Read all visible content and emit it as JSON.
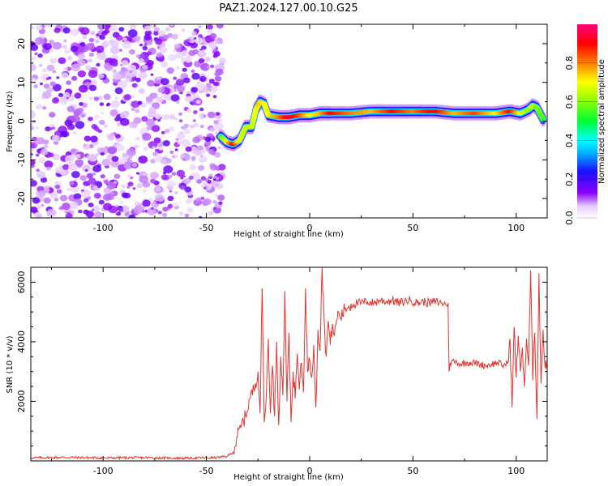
{
  "title": "PAZ1.2024.127.00.10.G25",
  "chart_data": [
    {
      "type": "heatmap",
      "xlabel": "Height of straight line (km)",
      "ylabel": "Frequency (Hz)",
      "xlim": [
        -135,
        115
      ],
      "ylim": [
        -25,
        25
      ],
      "x_ticks": [
        -100,
        -50,
        0,
        50,
        100
      ],
      "x_tick_labels": [
        "-100",
        "-50",
        "0",
        "50",
        "100"
      ],
      "y_ticks": [
        -20,
        -10,
        0,
        10,
        20
      ],
      "y_tick_labels": [
        "-20",
        "-10",
        "0",
        "10",
        "20"
      ],
      "grid": false,
      "colorbar": {
        "label": "Normalized spectral amplitude",
        "range": [
          0,
          1
        ],
        "ticks": [
          0.0,
          0.2,
          0.4,
          0.6,
          0.8
        ],
        "tick_labels": [
          "0.0",
          "0.2",
          "0.4",
          "0.6",
          "0.8"
        ],
        "colormap": "rainbow (white-violet-blue-cyan-green-yellow-red-magenta)"
      },
      "noise_region_x": [
        -135,
        -42
      ],
      "ridge": {
        "x": [
          -43,
          -40,
          -37,
          -34,
          -31,
          -28,
          -26,
          -24,
          -22,
          -20,
          -15,
          -10,
          -5,
          0,
          5,
          10,
          20,
          30,
          40,
          50,
          60,
          70,
          80,
          90,
          97,
          102,
          106,
          108,
          110,
          113
        ],
        "freq_hz": [
          -4,
          -5.5,
          -6,
          -5,
          -1.5,
          -1.5,
          3,
          5,
          4.5,
          1.5,
          1,
          1,
          1.5,
          1.5,
          2,
          2,
          2,
          2.5,
          2.5,
          2.5,
          2.5,
          2,
          2,
          2,
          2.5,
          2,
          3,
          4,
          3.5,
          0.5
        ],
        "amplitude": [
          0.2,
          0.5,
          0.9,
          0.45,
          0.4,
          0.4,
          0.5,
          0.6,
          0.5,
          0.5,
          0.7,
          0.95,
          0.8,
          0.5,
          0.6,
          0.9,
          0.7,
          0.6,
          0.9,
          0.7,
          0.95,
          0.6,
          0.8,
          0.5,
          0.9,
          0.5,
          0.3,
          0.4,
          0.3,
          0.2
        ]
      }
    },
    {
      "type": "line",
      "xlabel": "Height of straight line (km)",
      "ylabel": "SNR (10 * v/v)",
      "xlim": [
        -135,
        115
      ],
      "ylim": [
        0,
        6500
      ],
      "x_ticks": [
        -100,
        -50,
        0,
        50,
        100
      ],
      "x_tick_labels": [
        "-100",
        "-50",
        "0",
        "50",
        "100"
      ],
      "y_ticks": [
        2000,
        4000,
        6000
      ],
      "y_tick_labels": [
        "2000",
        "4000",
        "6000"
      ],
      "grid": false,
      "series": [
        {
          "color": "#e8322e",
          "x": [
            -135,
            -120,
            -100,
            -80,
            -60,
            -45,
            -40,
            -37,
            -35,
            -33,
            -31,
            -29,
            -27,
            -25,
            -24,
            -23,
            -22,
            -21,
            -20,
            -19,
            -18,
            -17,
            -16,
            -15,
            -14,
            -13,
            -12,
            -11,
            -10,
            -9,
            -8,
            -7,
            -6,
            -5,
            -4,
            -3,
            -2,
            -1,
            0,
            1,
            2,
            3,
            4,
            5,
            6,
            7,
            8,
            9,
            10,
            11,
            12,
            13,
            14,
            15,
            17,
            19,
            21,
            23,
            25,
            28,
            31,
            34,
            37,
            40,
            43,
            46,
            49,
            52,
            55,
            58,
            61,
            64,
            66,
            67,
            67.5,
            68,
            70,
            73,
            76,
            79,
            82,
            85,
            88,
            91,
            94,
            96,
            97,
            98,
            99,
            100,
            101,
            102,
            103,
            104,
            105,
            106,
            107,
            108,
            109,
            110,
            111,
            112,
            113,
            114,
            115
          ],
          "y": [
            100,
            120,
            100,
            110,
            90,
            110,
            150,
            300,
            800,
            1200,
            1500,
            2100,
            2400,
            3000,
            1600,
            5800,
            1300,
            2200,
            4100,
            1600,
            3200,
            1500,
            4000,
            1200,
            3500,
            2200,
            5700,
            2000,
            4300,
            1300,
            3000,
            2100,
            3600,
            2400,
            3300,
            2300,
            5800,
            3000,
            3400,
            2800,
            3900,
            1800,
            4400,
            3700,
            6500,
            4800,
            3500,
            4700,
            3900,
            4600,
            4200,
            4700,
            5000,
            4800,
            5100,
            5200,
            5250,
            5300,
            5300,
            5350,
            5300,
            5400,
            5350,
            5400,
            5300,
            5350,
            5400,
            5300,
            5350,
            5300,
            5350,
            5300,
            5250,
            5300,
            3000,
            3300,
            3350,
            3250,
            3300,
            3300,
            3250,
            3200,
            3250,
            3300,
            3200,
            3300,
            4100,
            1800,
            4500,
            2800,
            4200,
            3000,
            3800,
            2500,
            4100,
            3200,
            6400,
            2700,
            4300,
            1400,
            6300,
            2600,
            4400,
            3100,
            3200
          ]
        }
      ]
    }
  ]
}
